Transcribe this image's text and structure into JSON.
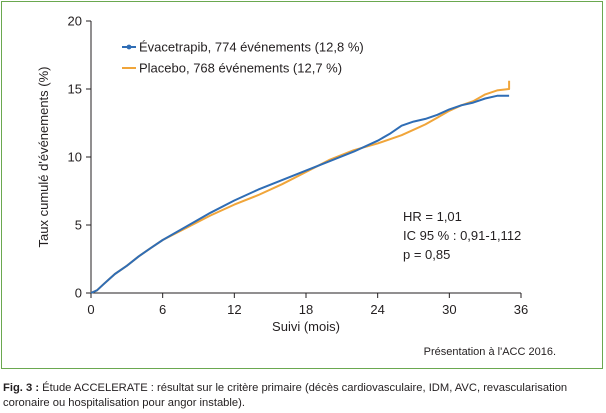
{
  "chart_data": {
    "type": "line",
    "x_label": "Suivi (mois)",
    "y_label": "Taux cumulé d'événements (%)",
    "x_ticks": [
      0,
      6,
      12,
      18,
      24,
      30,
      36
    ],
    "y_ticks": [
      0,
      5,
      10,
      15,
      20
    ],
    "xlim": [
      0,
      36
    ],
    "ylim": [
      0,
      20
    ],
    "grid": false,
    "legend_position": "top-left",
    "series": [
      {
        "name": "Évacetrapib, 774 événements (12,8 %)",
        "color": "#2f6db5",
        "x": [
          0,
          0.5,
          1,
          1.5,
          2,
          3,
          4,
          5,
          6,
          8,
          10,
          12,
          14,
          16,
          18,
          20,
          22,
          24,
          25,
          26,
          27,
          28,
          29,
          30,
          31,
          32,
          33,
          34,
          35
        ],
        "y": [
          0,
          0.2,
          0.6,
          1.0,
          1.4,
          2.0,
          2.7,
          3.3,
          3.9,
          4.9,
          5.9,
          6.8,
          7.6,
          8.3,
          9.0,
          9.7,
          10.4,
          11.2,
          11.7,
          12.3,
          12.6,
          12.8,
          13.1,
          13.5,
          13.8,
          14.0,
          14.3,
          14.5,
          14.5
        ]
      },
      {
        "name": "Placebo, 768 événements (12,7 %)",
        "color": "#f0a53a",
        "x": [
          0,
          0.5,
          1,
          1.5,
          2,
          3,
          4,
          5,
          6,
          8,
          10,
          12,
          14,
          16,
          18,
          20,
          22,
          24,
          26,
          28,
          29,
          30,
          31,
          32,
          33,
          34,
          35,
          35
        ],
        "y": [
          0,
          0.2,
          0.6,
          1.0,
          1.4,
          2.0,
          2.7,
          3.3,
          3.9,
          4.8,
          5.7,
          6.5,
          7.2,
          8.0,
          8.9,
          9.8,
          10.5,
          11.0,
          11.6,
          12.4,
          12.9,
          13.4,
          13.8,
          14.1,
          14.6,
          14.9,
          15.0,
          15.6
        ]
      }
    ],
    "annotations": [
      "HR = 1,01",
      "IC 95 % : 0,91-1,112",
      "p = 0,85"
    ],
    "source_note": "Présentation à l'ACC 2016."
  },
  "caption": {
    "label": "Fig. 3 :",
    "text": " Étude ACCELERATE : résultat sur le critère primaire (décès cardiovasculaire, IDM, AVC, revascularisation coronaire ou hospitalisation pour angor instable)."
  }
}
